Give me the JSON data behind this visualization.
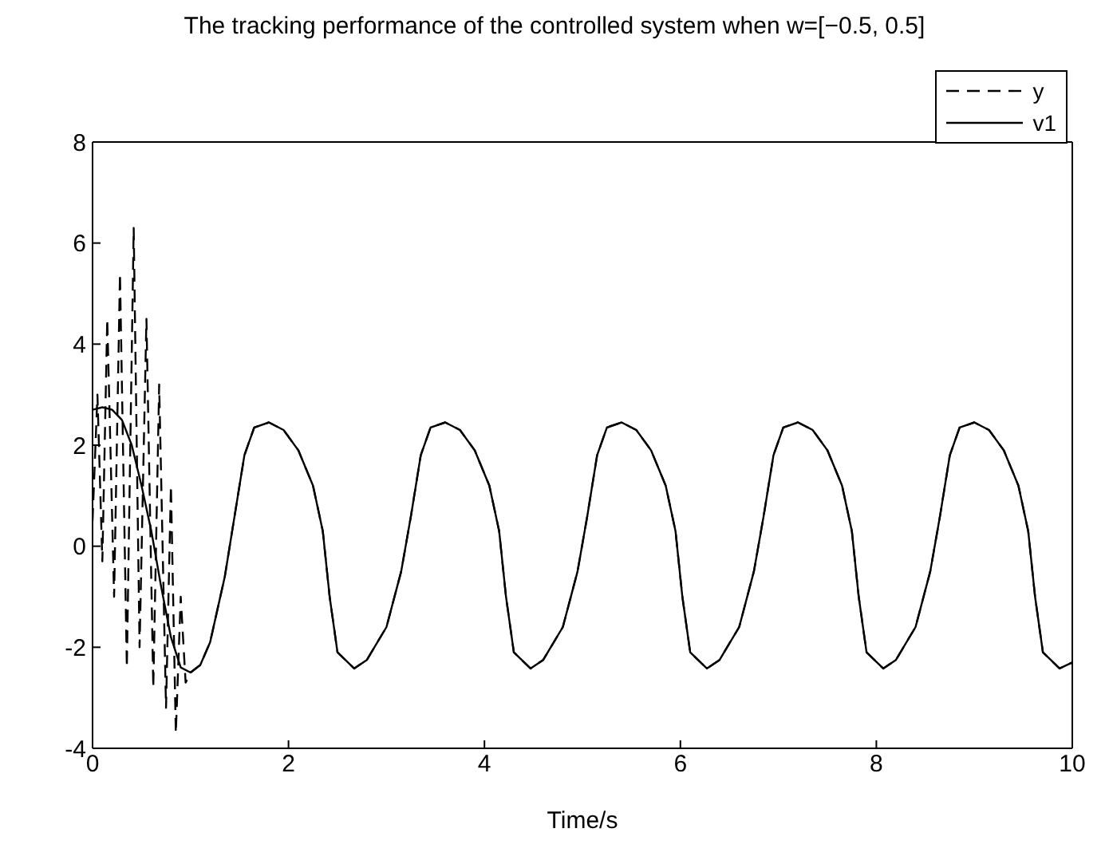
{
  "chart_data": {
    "type": "line",
    "title": "The tracking performance of the controlled system when w=[−0.5, 0.5]",
    "xlabel": "Time/s",
    "xlim": [
      0,
      10
    ],
    "xticks": [
      0,
      2,
      4,
      6,
      8,
      10
    ],
    "ylim": [
      -4,
      8
    ],
    "yticks": [
      -4,
      -2,
      0,
      2,
      4,
      6,
      8
    ],
    "legend": "top right",
    "marker": "none",
    "series": [
      {
        "name": "y",
        "color": "#000000",
        "line_style": "dashed",
        "x": [
          0,
          0.05,
          0.1,
          0.15,
          0.22,
          0.28,
          0.35,
          0.42,
          0.48,
          0.55,
          0.62,
          0.68,
          0.75,
          0.8,
          0.85,
          0.9,
          0.95,
          1.0,
          1.1,
          1.2,
          1.35,
          1.45,
          1.55,
          1.65,
          1.8,
          1.95,
          2.1,
          2.25,
          2.35,
          2.42,
          2.5,
          2.67,
          2.8,
          3.0,
          3.15,
          3.25,
          3.35,
          3.45,
          3.6,
          3.75,
          3.9,
          4.05,
          4.15,
          4.22,
          4.3,
          4.47,
          4.6,
          4.8,
          4.95,
          5.05,
          5.15,
          5.25,
          5.4,
          5.55,
          5.7,
          5.85,
          5.95,
          6.02,
          6.1,
          6.27,
          6.4,
          6.6,
          6.75,
          6.85,
          6.95,
          7.05,
          7.2,
          7.35,
          7.5,
          7.65,
          7.75,
          7.82,
          7.9,
          8.07,
          8.2,
          8.4,
          8.55,
          8.65,
          8.75,
          8.85,
          9.0,
          9.15,
          9.3,
          9.45,
          9.55,
          9.62,
          9.7,
          9.87,
          10
        ],
        "values": [
          0.5,
          3.0,
          -0.3,
          4.5,
          -1.0,
          5.4,
          -2.4,
          6.3,
          -2.0,
          4.5,
          -2.8,
          3.2,
          -3.2,
          1.2,
          -3.7,
          -1.0,
          -2.7,
          -2.5,
          -2.35,
          -1.9,
          -0.6,
          0.6,
          1.8,
          2.35,
          2.45,
          2.3,
          1.9,
          1.2,
          0.3,
          -1.0,
          -2.1,
          -2.42,
          -2.25,
          -1.6,
          -0.5,
          0.6,
          1.8,
          2.35,
          2.45,
          2.3,
          1.9,
          1.2,
          0.3,
          -1.0,
          -2.1,
          -2.42,
          -2.25,
          -1.6,
          -0.5,
          0.6,
          1.8,
          2.35,
          2.45,
          2.3,
          1.9,
          1.2,
          0.3,
          -1.0,
          -2.1,
          -2.42,
          -2.25,
          -1.6,
          -0.5,
          0.6,
          1.8,
          2.35,
          2.45,
          2.3,
          1.9,
          1.2,
          0.3,
          -1.0,
          -2.1,
          -2.42,
          -2.25,
          -1.6,
          -0.5,
          0.6,
          1.8,
          2.35,
          2.45,
          2.3,
          1.9,
          1.2,
          0.3,
          -1.0,
          -2.1,
          -2.42,
          -2.3
        ]
      },
      {
        "name": "v1",
        "color": "#000000",
        "line_style": "solid",
        "x": [
          0,
          0.1,
          0.2,
          0.3,
          0.4,
          0.5,
          0.6,
          0.7,
          0.8,
          0.9,
          1.0,
          1.1,
          1.2,
          1.35,
          1.45,
          1.55,
          1.65,
          1.8,
          1.95,
          2.1,
          2.25,
          2.35,
          2.42,
          2.5,
          2.67,
          2.8,
          3.0,
          3.15,
          3.25,
          3.35,
          3.45,
          3.6,
          3.75,
          3.9,
          4.05,
          4.15,
          4.22,
          4.3,
          4.47,
          4.6,
          4.8,
          4.95,
          5.05,
          5.15,
          5.25,
          5.4,
          5.55,
          5.7,
          5.85,
          5.95,
          6.02,
          6.1,
          6.27,
          6.4,
          6.6,
          6.75,
          6.85,
          6.95,
          7.05,
          7.2,
          7.35,
          7.5,
          7.65,
          7.75,
          7.82,
          7.9,
          8.07,
          8.2,
          8.4,
          8.55,
          8.65,
          8.75,
          8.85,
          9.0,
          9.15,
          9.3,
          9.45,
          9.55,
          9.62,
          9.7,
          9.87,
          10
        ],
        "values": [
          2.7,
          2.75,
          2.7,
          2.5,
          2.0,
          1.2,
          0.3,
          -0.8,
          -1.8,
          -2.4,
          -2.5,
          -2.35,
          -1.9,
          -0.6,
          0.6,
          1.8,
          2.35,
          2.45,
          2.3,
          1.9,
          1.2,
          0.3,
          -1.0,
          -2.1,
          -2.42,
          -2.25,
          -1.6,
          -0.5,
          0.6,
          1.8,
          2.35,
          2.45,
          2.3,
          1.9,
          1.2,
          0.3,
          -1.0,
          -2.1,
          -2.42,
          -2.25,
          -1.6,
          -0.5,
          0.6,
          1.8,
          2.35,
          2.45,
          2.3,
          1.9,
          1.2,
          0.3,
          -1.0,
          -2.1,
          -2.42,
          -2.25,
          -1.6,
          -0.5,
          0.6,
          1.8,
          2.35,
          2.45,
          2.3,
          1.9,
          1.2,
          0.3,
          -1.0,
          -2.1,
          -2.42,
          -2.25,
          -1.6,
          -0.5,
          0.6,
          1.8,
          2.35,
          2.45,
          2.3,
          1.9,
          1.2,
          0.3,
          -1.0,
          -2.1,
          -2.42,
          -2.3
        ]
      }
    ]
  }
}
